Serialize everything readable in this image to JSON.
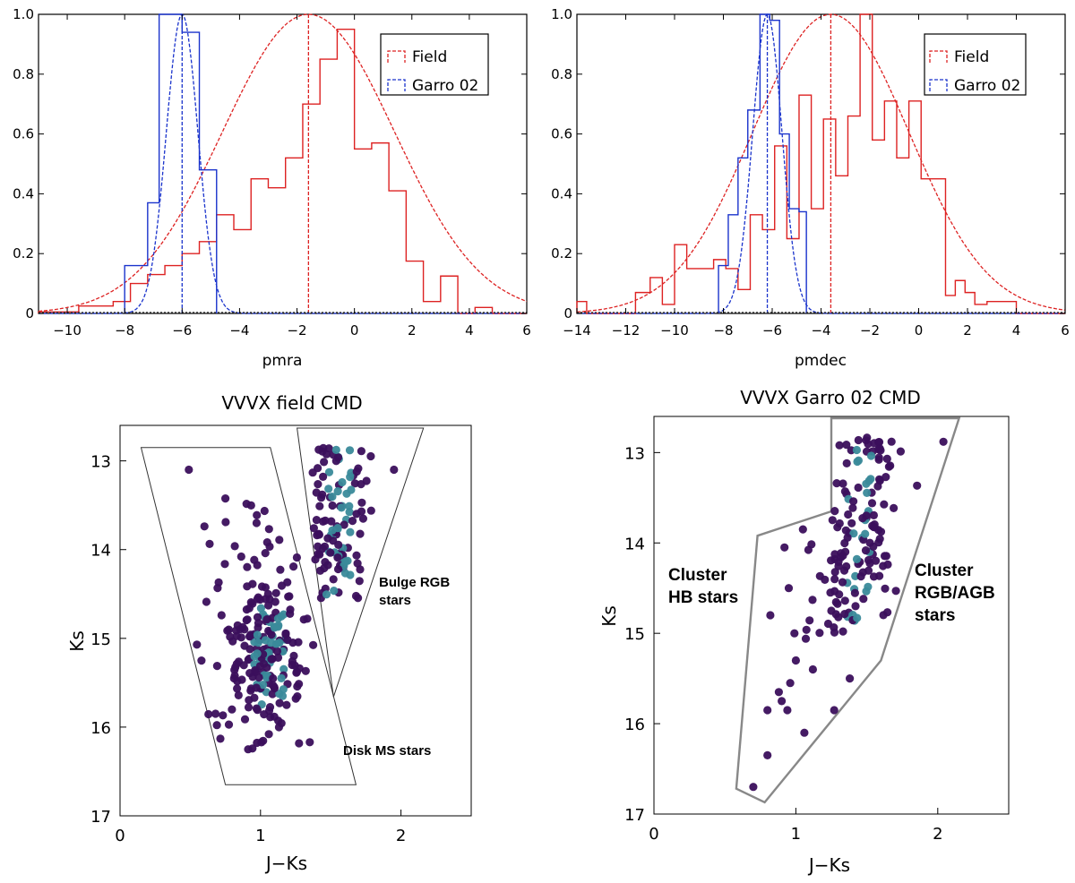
{
  "colors": {
    "field": "#dd2222",
    "cluster": "#1a33cc",
    "star_dark": "#3b0f5c",
    "star_mid": "#3a8a9a",
    "box": "#888888"
  },
  "chart_data": [
    {
      "type": "histogram",
      "id": "pmra",
      "xlabel": "pmra",
      "xlim": [
        -11,
        6
      ],
      "ylim": [
        0,
        1.0
      ],
      "xticks": [
        -10,
        -8,
        -6,
        -4,
        -2,
        0,
        2,
        4,
        6
      ],
      "yticks": [
        0,
        0.2,
        0.4,
        0.6,
        0.8,
        1.0
      ],
      "xtick_labels": [
        "−10",
        "−8",
        "−6",
        "−4",
        "−2",
        "0",
        "2",
        "4",
        "6"
      ],
      "ytick_labels": [
        "0",
        "0.2",
        "0.4",
        "0.6",
        "0.8",
        "1.0"
      ],
      "legend": [
        "Field",
        "Garro 02"
      ],
      "series": [
        {
          "name": "Field",
          "edges": [
            -11.0,
            -9.6,
            -8.4,
            -7.8,
            -7.2,
            -6.6,
            -6.0,
            -5.4,
            -4.8,
            -4.2,
            -3.6,
            -3.0,
            -2.4,
            -1.8,
            -1.2,
            -0.6,
            0.0,
            0.6,
            1.2,
            1.8,
            2.4,
            3.0,
            3.6,
            4.2,
            4.8,
            6.0
          ],
          "heights": [
            0.005,
            0.025,
            0.04,
            0.1,
            0.13,
            0.16,
            0.2,
            0.24,
            0.33,
            0.28,
            0.45,
            0.42,
            0.52,
            0.7,
            0.85,
            0.95,
            0.55,
            0.57,
            0.41,
            0.175,
            0.04,
            0.125,
            0.0,
            0.02,
            0.0
          ],
          "gauss_mean": -1.6,
          "gauss_sigma": 3.0
        },
        {
          "name": "Garro 02",
          "edges": [
            -8.0,
            -7.6,
            -7.2,
            -6.8,
            -6.4,
            -6.0,
            -5.8,
            -5.4,
            -4.8
          ],
          "heights": [
            0.16,
            0.16,
            0.37,
            1.0,
            1.0,
            0.94,
            0.94,
            0.48
          ],
          "gauss_mean": -6.0,
          "gauss_sigma": 0.55
        }
      ]
    },
    {
      "type": "histogram",
      "id": "pmdec",
      "xlabel": "pmdec",
      "xlim": [
        -14,
        6
      ],
      "ylim": [
        0,
        1.0
      ],
      "xticks": [
        -14,
        -12,
        -10,
        -8,
        -6,
        -4,
        -2,
        0,
        2,
        4,
        6
      ],
      "yticks": [
        0,
        0.2,
        0.4,
        0.6,
        0.8,
        1.0
      ],
      "xtick_labels": [
        "−14",
        "−12",
        "−10",
        "−8",
        "−6",
        "−4",
        "−2",
        "0",
        "2",
        "4",
        "6"
      ],
      "ytick_labels": [
        "0",
        "0.2",
        "0.4",
        "0.6",
        "0.8",
        "1.0"
      ],
      "legend": [
        "Field",
        "Garro 02"
      ],
      "series": [
        {
          "name": "Field",
          "edges": [
            -14.0,
            -13.6,
            -11.6,
            -11.0,
            -10.5,
            -10.0,
            -9.5,
            -8.9,
            -8.4,
            -7.9,
            -7.4,
            -6.9,
            -6.4,
            -5.9,
            -5.4,
            -4.9,
            -4.4,
            -3.9,
            -3.4,
            -2.9,
            -2.4,
            -1.9,
            -1.4,
            -0.9,
            -0.4,
            0.1,
            0.6,
            1.1,
            1.5,
            1.9,
            2.3,
            2.8,
            3.3,
            4.0,
            6.0
          ],
          "heights": [
            0.04,
            0.0,
            0.07,
            0.12,
            0.03,
            0.23,
            0.15,
            0.15,
            0.18,
            0.15,
            0.08,
            0.33,
            0.28,
            0.56,
            0.25,
            0.73,
            0.35,
            0.65,
            0.46,
            0.66,
            1.0,
            0.58,
            0.71,
            0.52,
            0.71,
            0.45,
            0.45,
            0.06,
            0.11,
            0.07,
            0.03,
            0.04,
            0.04,
            0.0
          ],
          "gauss_mean": -3.6,
          "gauss_sigma": 3.2
        },
        {
          "name": "Garro 02",
          "edges": [
            -8.2,
            -7.8,
            -7.4,
            -7.0,
            -6.5,
            -6.1,
            -5.7,
            -5.3,
            -4.9,
            -4.6
          ],
          "heights": [
            0.16,
            0.33,
            0.52,
            0.68,
            1.0,
            0.98,
            0.6,
            0.35,
            0.34
          ],
          "gauss_mean": -6.2,
          "gauss_sigma": 0.6
        }
      ]
    },
    {
      "type": "scatter",
      "id": "field_cmd",
      "title": "VVVX field CMD",
      "xlabel": "J−Ks",
      "ylabel": "Ks",
      "xlim": [
        0,
        2.5
      ],
      "ylim": [
        17,
        12.6
      ],
      "xticks": [
        0,
        1,
        2
      ],
      "yticks": [
        13,
        14,
        15,
        16,
        17
      ],
      "xtick_labels": [
        "0",
        "1",
        "2"
      ],
      "ytick_labels": [
        "13",
        "14",
        "15",
        "16",
        "17"
      ],
      "regions": [
        {
          "name": "Disk MS stars",
          "lines": [
            "Disk MS stars"
          ],
          "polygon": [
            [
              0.15,
              12.85
            ],
            [
              1.07,
              12.85
            ],
            [
              1.68,
              16.65
            ],
            [
              0.75,
              16.65
            ]
          ]
        },
        {
          "name": "Bulge RGB stars",
          "lines": [
            "Bulge RGB",
            "stars"
          ],
          "polygon": [
            [
              1.26,
              12.63
            ],
            [
              2.16,
              12.63
            ],
            [
              1.52,
              15.66
            ]
          ]
        }
      ],
      "n_points": 350,
      "seed": 11
    },
    {
      "type": "scatter",
      "id": "cluster_cmd",
      "title": "VVVX Garro 02 CMD",
      "xlabel": "J−Ks",
      "ylabel": "Ks",
      "xlim": [
        0,
        2.5
      ],
      "ylim": [
        17,
        12.6
      ],
      "xticks": [
        0,
        1,
        2
      ],
      "yticks": [
        13,
        14,
        15,
        16,
        17
      ],
      "xtick_labels": [
        "0",
        "1",
        "2"
      ],
      "ytick_labels": [
        "13",
        "14",
        "15",
        "16",
        "17"
      ],
      "regions": [
        {
          "name": "Cluster HB stars",
          "lines": [
            "Cluster",
            "HB stars"
          ]
        },
        {
          "name": "Cluster RGB/AGB stars",
          "lines": [
            "Cluster",
            "RGB/AGB",
            "stars"
          ]
        }
      ],
      "polygon": [
        [
          1.25,
          12.62
        ],
        [
          2.15,
          12.62
        ],
        [
          1.6,
          15.3
        ],
        [
          0.78,
          16.87
        ],
        [
          0.58,
          16.72
        ],
        [
          0.73,
          13.92
        ],
        [
          1.25,
          13.65
        ]
      ],
      "n_points": 200,
      "seed": 23
    }
  ]
}
